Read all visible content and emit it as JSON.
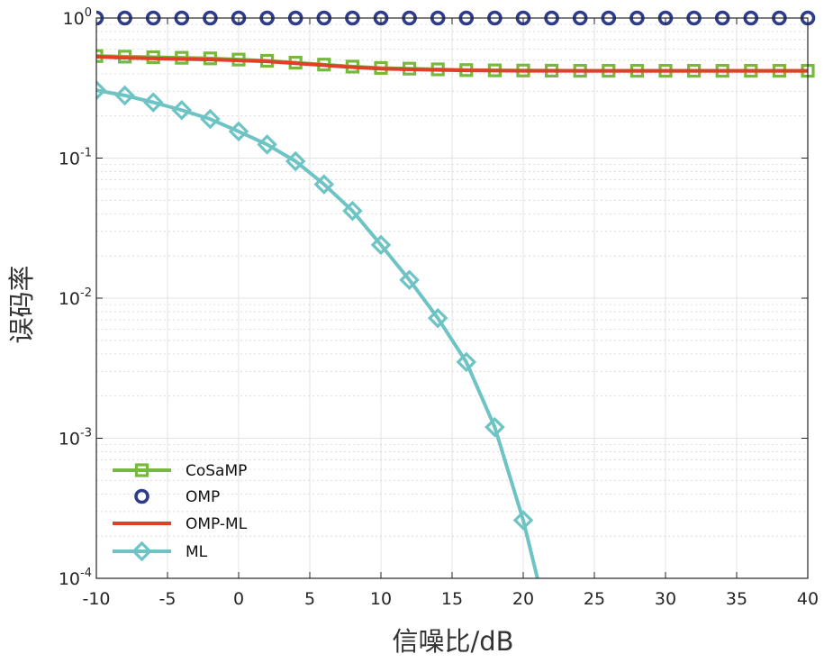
{
  "chart_data": {
    "type": "line",
    "title": "",
    "xlabel": "信噪比/dB",
    "ylabel": "误码率",
    "xlim": [
      -10,
      40
    ],
    "ylim": [
      0.0001,
      1
    ],
    "yscale": "log",
    "grid": true,
    "minor_grid": true,
    "legend_location": "bottom-left",
    "x_ticks": [
      -10,
      -5,
      0,
      5,
      10,
      15,
      20,
      25,
      30,
      35,
      40
    ],
    "x_tick_labels": [
      "-10",
      "-5",
      "0",
      "5",
      "10",
      "15",
      "20",
      "25",
      "30",
      "35",
      "40"
    ],
    "y_ticks": [
      {
        "value": 1,
        "base": "10",
        "exp": "0"
      },
      {
        "value": 0.1,
        "base": "10",
        "exp": "-1"
      },
      {
        "value": 0.01,
        "base": "10",
        "exp": "-2"
      },
      {
        "value": 0.001,
        "base": "10",
        "exp": "-3"
      },
      {
        "value": 0.0001,
        "base": "10",
        "exp": "-4"
      }
    ],
    "series": [
      {
        "name": "CoSaMP",
        "color": "#77b83f",
        "marker": "square",
        "line": true,
        "x": [
          -10,
          -8,
          -6,
          -4,
          -2,
          0,
          2,
          4,
          6,
          8,
          10,
          12,
          14,
          16,
          18,
          20,
          22,
          24,
          26,
          28,
          30,
          32,
          34,
          36,
          38,
          40
        ],
        "y": [
          0.535,
          0.53,
          0.525,
          0.52,
          0.515,
          0.505,
          0.495,
          0.48,
          0.465,
          0.45,
          0.44,
          0.435,
          0.43,
          0.425,
          0.423,
          0.422,
          0.421,
          0.42,
          0.42,
          0.42,
          0.42,
          0.42,
          0.42,
          0.42,
          0.42,
          0.42
        ]
      },
      {
        "name": "OMP",
        "color": "#2e3c8c",
        "marker": "circle",
        "line": false,
        "x": [
          -10,
          -8,
          -6,
          -4,
          -2,
          0,
          2,
          4,
          6,
          8,
          10,
          12,
          14,
          16,
          18,
          20,
          22,
          24,
          26,
          28,
          30,
          32,
          34,
          36,
          38,
          40
        ],
        "y": [
          1,
          1,
          1,
          1,
          1,
          1,
          1,
          1,
          1,
          1,
          1,
          1,
          1,
          1,
          1,
          1,
          1,
          1,
          1,
          1,
          1,
          1,
          1,
          1,
          1,
          1
        ]
      },
      {
        "name": "OMP-ML",
        "color": "#e0402a",
        "marker": "none",
        "line": true,
        "x": [
          -10,
          -8,
          -6,
          -4,
          -2,
          0,
          2,
          4,
          6,
          8,
          10,
          12,
          14,
          16,
          18,
          20,
          22,
          24,
          26,
          28,
          30,
          32,
          34,
          36,
          38,
          40
        ],
        "y": [
          0.53,
          0.52,
          0.515,
          0.51,
          0.505,
          0.498,
          0.49,
          0.475,
          0.46,
          0.445,
          0.435,
          0.43,
          0.426,
          0.423,
          0.421,
          0.42,
          0.42,
          0.42,
          0.42,
          0.42,
          0.42,
          0.42,
          0.42,
          0.42,
          0.42,
          0.42
        ]
      },
      {
        "name": "ML",
        "color": "#6ec4c4",
        "marker": "diamond",
        "line": true,
        "x": [
          -10,
          -8,
          -6,
          -4,
          -2,
          0,
          2,
          4,
          6,
          8,
          10,
          12,
          14,
          16,
          18,
          20,
          21
        ],
        "y": [
          0.305,
          0.28,
          0.25,
          0.22,
          0.19,
          0.155,
          0.125,
          0.095,
          0.065,
          0.042,
          0.024,
          0.0135,
          0.0072,
          0.0035,
          0.0012,
          0.00026,
          0.0001
        ],
        "marker_count": 16
      }
    ]
  }
}
